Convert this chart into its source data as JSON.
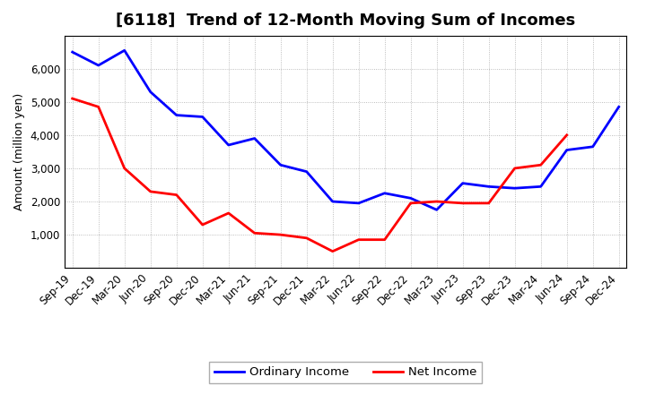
{
  "title": "[6118]  Trend of 12-Month Moving Sum of Incomes",
  "ylabel": "Amount (million yen)",
  "x_labels": [
    "Sep-19",
    "Dec-19",
    "Mar-20",
    "Jun-20",
    "Sep-20",
    "Dec-20",
    "Mar-21",
    "Jun-21",
    "Sep-21",
    "Dec-21",
    "Mar-22",
    "Jun-22",
    "Sep-22",
    "Dec-22",
    "Mar-23",
    "Jun-23",
    "Sep-23",
    "Dec-23",
    "Mar-24",
    "Jun-24",
    "Sep-24",
    "Dec-24"
  ],
  "ordinary_income": [
    6500,
    6100,
    6550,
    5300,
    4600,
    4550,
    3700,
    3900,
    3100,
    2900,
    2000,
    1950,
    2250,
    2100,
    1750,
    2550,
    2450,
    2400,
    2450,
    3550,
    3650,
    4850
  ],
  "net_income": [
    5100,
    4850,
    3000,
    2300,
    2200,
    1300,
    1650,
    1050,
    1000,
    900,
    500,
    850,
    850,
    1950,
    2000,
    1950,
    1950,
    3000,
    3100,
    4000,
    null,
    null
  ],
  "ordinary_color": "#0000FF",
  "net_color": "#FF0000",
  "background_color": "#FFFFFF",
  "plot_bg_color": "#FFFFFF",
  "ylim": [
    0,
    7000
  ],
  "yticks": [
    1000,
    2000,
    3000,
    4000,
    5000,
    6000
  ],
  "grid_color": "#AAAAAA",
  "legend_ordinary": "Ordinary Income",
  "legend_net": "Net Income",
  "line_width": 2.0,
  "title_fontsize": 13,
  "axis_label_fontsize": 9,
  "tick_fontsize": 8.5
}
